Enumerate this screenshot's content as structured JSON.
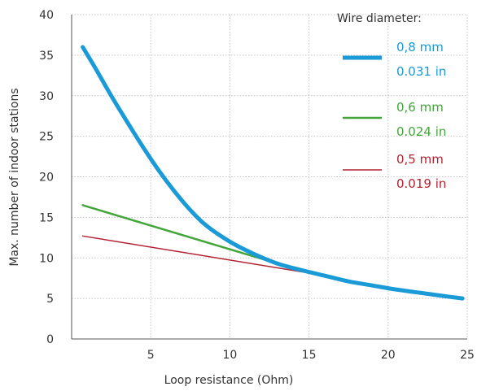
{
  "chart_data": {
    "type": "line",
    "xlabel": "Loop resistance (Ohm)",
    "ylabel": "Max. number of indoor stations",
    "xlim": [
      0,
      25
    ],
    "ylim": [
      0,
      40
    ],
    "x_ticks": [
      "5",
      "10",
      "15",
      "20",
      "25"
    ],
    "y_ticks": [
      "0",
      "5",
      "10",
      "15",
      "20",
      "25",
      "30",
      "35",
      "40"
    ],
    "grid": true,
    "legend_title": "Wire diameter:",
    "legend_position": "top-right",
    "series": [
      {
        "name": "0,8 mm",
        "name_alt": "0.031 in",
        "color": "#1a9ad6",
        "x": [
          0.7,
          1.5,
          2.5,
          3.5,
          4.5,
          5.5,
          6.5,
          7.5,
          8.5,
          10,
          11.5,
          13,
          14.5,
          16,
          17.5,
          19,
          20.5,
          22,
          23.5,
          24.7
        ],
        "y": [
          36,
          33.4,
          30,
          26.8,
          23.7,
          20.8,
          18.2,
          15.9,
          14,
          12,
          10.5,
          9.3,
          8.5,
          7.8,
          7.1,
          6.6,
          6.1,
          5.7,
          5.3,
          5
        ]
      },
      {
        "name": "0,6 mm",
        "name_alt": "0.024 in",
        "color": "#43a53a",
        "x": [
          0.7,
          12.5
        ],
        "y": [
          16.5,
          9.6
        ]
      },
      {
        "name": "0,5 mm",
        "name_alt": "0.019 in",
        "color": "#b32232",
        "x": [
          0.7,
          17
        ],
        "y": [
          12.7,
          7.5
        ]
      }
    ]
  }
}
